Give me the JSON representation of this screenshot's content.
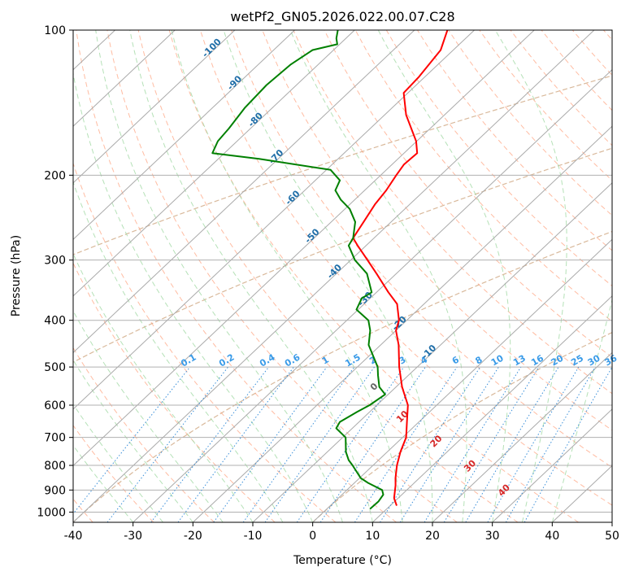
{
  "chart_data": {
    "type": "line",
    "title": "wetPf2_GN05.2026.022.00.07.C28",
    "xlabel": "Temperature (°C)",
    "ylabel": "Pressure (hPa)",
    "xlim": [
      -40,
      50
    ],
    "ylim": [
      1050,
      100
    ],
    "yscale": "log",
    "skew": "skew-T log-P",
    "x_ticks": [
      -40,
      -30,
      -20,
      -10,
      0,
      10,
      20,
      30,
      40,
      50
    ],
    "y_ticks": [
      100,
      200,
      300,
      400,
      500,
      600,
      700,
      800,
      900,
      1000
    ],
    "grid": true,
    "series": [
      {
        "role": "temperature",
        "color": "#ff0000",
        "points": [
          {
            "p": 970,
            "t": 11.1
          },
          {
            "p": 935,
            "t": 9.3
          },
          {
            "p": 910,
            "t": 8.4
          },
          {
            "p": 880,
            "t": 7.3
          },
          {
            "p": 850,
            "t": 6.0
          },
          {
            "p": 800,
            "t": 4.0
          },
          {
            "p": 750,
            "t": 2.2
          },
          {
            "p": 700,
            "t": 0.6
          },
          {
            "p": 650,
            "t": -2.0
          },
          {
            "p": 600,
            "t": -4.8
          },
          {
            "p": 550,
            "t": -9.0
          },
          {
            "p": 500,
            "t": -13.0
          },
          {
            "p": 450,
            "t": -17.0
          },
          {
            "p": 420,
            "t": -20.0
          },
          {
            "p": 400,
            "t": -21.3
          },
          {
            "p": 370,
            "t": -24.5
          },
          {
            "p": 350,
            "t": -28.0
          },
          {
            "p": 320,
            "t": -33.3
          },
          {
            "p": 300,
            "t": -37.2
          },
          {
            "p": 280,
            "t": -41.4
          },
          {
            "p": 270,
            "t": -43.5
          },
          {
            "p": 250,
            "t": -44.6
          },
          {
            "p": 230,
            "t": -45.8
          },
          {
            "p": 215,
            "t": -46.4
          },
          {
            "p": 200,
            "t": -47.4
          },
          {
            "p": 190,
            "t": -48.0
          },
          {
            "p": 180,
            "t": -47.8
          },
          {
            "p": 170,
            "t": -50.1
          },
          {
            "p": 150,
            "t": -56.4
          },
          {
            "p": 135,
            "t": -60.7
          },
          {
            "p": 125,
            "t": -61.0
          },
          {
            "p": 110,
            "t": -62.1
          },
          {
            "p": 100,
            "t": -64.5
          }
        ]
      },
      {
        "role": "dewpoint",
        "color": "#008000",
        "points": [
          {
            "p": 985,
            "t": 7.2
          },
          {
            "p": 950,
            "t": 7.3
          },
          {
            "p": 920,
            "t": 6.9
          },
          {
            "p": 900,
            "t": 5.9
          },
          {
            "p": 870,
            "t": 2.3
          },
          {
            "p": 850,
            "t": 0.2
          },
          {
            "p": 800,
            "t": -3.4
          },
          {
            "p": 780,
            "t": -5.0
          },
          {
            "p": 750,
            "t": -6.9
          },
          {
            "p": 700,
            "t": -9.5
          },
          {
            "p": 670,
            "t": -12.7
          },
          {
            "p": 650,
            "t": -13.2
          },
          {
            "p": 620,
            "t": -12.1
          },
          {
            "p": 600,
            "t": -11.2
          },
          {
            "p": 570,
            "t": -10.5
          },
          {
            "p": 550,
            "t": -12.8
          },
          {
            "p": 520,
            "t": -15.1
          },
          {
            "p": 500,
            "t": -16.6
          },
          {
            "p": 450,
            "t": -22.0
          },
          {
            "p": 420,
            "t": -24.3
          },
          {
            "p": 400,
            "t": -26.4
          },
          {
            "p": 380,
            "t": -30.3
          },
          {
            "p": 360,
            "t": -31.4
          },
          {
            "p": 350,
            "t": -30.8
          },
          {
            "p": 320,
            "t": -34.9
          },
          {
            "p": 300,
            "t": -39.3
          },
          {
            "p": 280,
            "t": -42.9
          },
          {
            "p": 270,
            "t": -43.5
          },
          {
            "p": 250,
            "t": -46.0
          },
          {
            "p": 235,
            "t": -49.2
          },
          {
            "p": 225,
            "t": -52.3
          },
          {
            "p": 215,
            "t": -54.9
          },
          {
            "p": 205,
            "t": -55.9
          },
          {
            "p": 195,
            "t": -59.3
          },
          {
            "p": 185,
            "t": -73.2
          },
          {
            "p": 180,
            "t": -82.0
          },
          {
            "p": 170,
            "t": -83.2
          },
          {
            "p": 160,
            "t": -83.6
          },
          {
            "p": 145,
            "t": -84.6
          },
          {
            "p": 130,
            "t": -85.0
          },
          {
            "p": 118,
            "t": -84.6
          },
          {
            "p": 110,
            "t": -83.5
          },
          {
            "p": 107,
            "t": -80.4
          },
          {
            "p": 104,
            "t": -81.6
          },
          {
            "p": 100,
            "t": -82.8
          }
        ]
      }
    ],
    "reference_lines": {
      "dry_adiabats": {
        "color": "#ffa07a",
        "style": "dashed"
      },
      "moist_adiabats": {
        "color": "#a3d9a5",
        "style": "dashed"
      },
      "isotherms": {
        "color": "#aaaaaa"
      },
      "theta_e_curves": {
        "color": "#d9b99b"
      },
      "mixing_ratio": {
        "color": "#3a8fd9",
        "style": "dotted",
        "labels": [
          "0.1",
          "0.2",
          "0.4",
          "0.6",
          "1",
          "1.5",
          "2",
          "3",
          "4",
          "6",
          "8",
          "10",
          "13",
          "16",
          "20",
          "25",
          "30",
          "36"
        ]
      },
      "theta_w_labels": {
        "color": "#d62828",
        "labels": [
          "0",
          "10",
          "20",
          "30",
          "40"
        ]
      },
      "temperature_labels": {
        "color": "#1f6ea8",
        "labels": [
          "-100",
          "-90",
          "-80",
          "-70",
          "-60",
          "-50",
          "-40",
          "-30",
          "-20",
          "-10"
        ]
      }
    }
  }
}
